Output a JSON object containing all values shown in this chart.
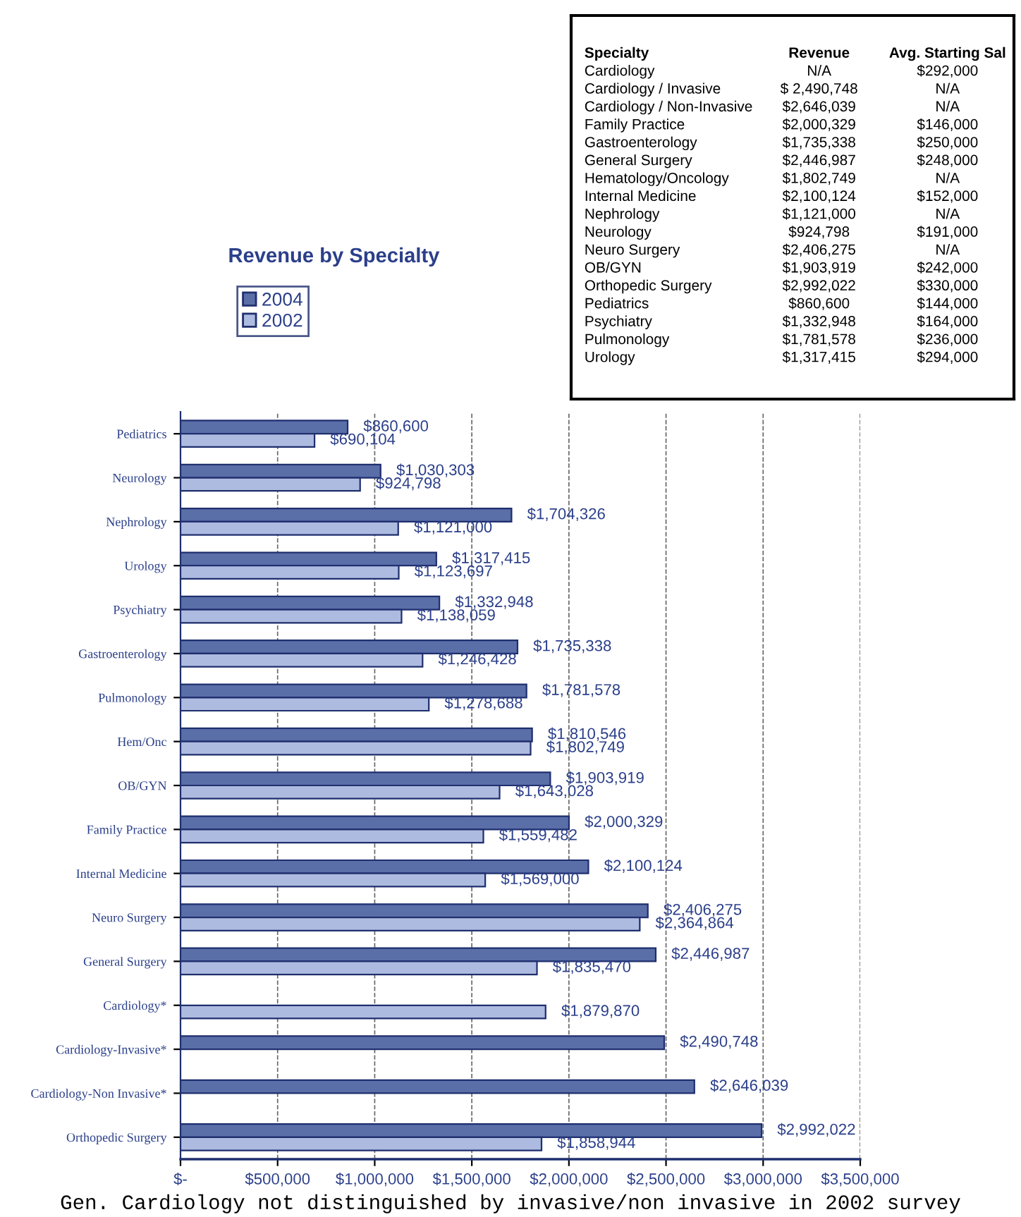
{
  "chart_data": [
    {
      "type": "bar",
      "orientation": "horizontal",
      "title": "Revenue by Specialty",
      "categories": [
        "Pediatrics",
        "Neurology",
        "Nephrology",
        "Urology",
        "Psychiatry",
        "Gastroenterology",
        "Pulmonology",
        "Hem/Onc",
        "OB/GYN",
        "Family Practice",
        "Internal Medicine",
        "Neuro Surgery",
        "General Surgery",
        "Cardiology*",
        "Cardiology-Invasive*",
        "Cardiology-Non Invasive*",
        "Orthopedic Surgery"
      ],
      "series": [
        {
          "name": "2004",
          "color": "#5a6ea8",
          "values": [
            860600,
            1030303,
            1704326,
            1317415,
            1332948,
            1735338,
            1781578,
            1810546,
            1903919,
            2000329,
            2100124,
            2406275,
            2446987,
            null,
            2490748,
            2646039,
            2992022
          ],
          "value_labels": [
            "$860,600",
            "$1,030,303",
            "$1,704,326",
            "$1,317,415",
            "$1,332,948",
            "$1,735,338",
            "$1,781,578",
            "$1,810,546",
            "$1,903,919",
            "$2,000,329",
            "$2,100,124",
            "$2,406,275",
            "$2,446,987",
            null,
            "$2,490,748",
            "$2,646,039",
            "$2,992,022"
          ]
        },
        {
          "name": "2002",
          "color": "#aebbe0",
          "values": [
            690104,
            924798,
            1121000,
            1123697,
            1138059,
            1246428,
            1278688,
            1802749,
            1643028,
            1559482,
            1569000,
            2364864,
            1835470,
            1879870,
            null,
            null,
            1858944
          ],
          "value_labels": [
            "$690,104",
            "$924,798",
            "$1,121,000",
            "$1,123,697",
            "$1,138,059",
            "$1,246,428",
            "$1,278,688",
            "$1,802,749",
            "$1,643,028",
            "$1,559,482",
            "$1,569,000",
            "$2,364,864",
            "$1,835,470",
            "$1,879,870",
            null,
            null,
            "$1,858,944"
          ]
        }
      ],
      "xlim": [
        0,
        3500000
      ],
      "xticks": [
        {
          "value": 0,
          "label": "$-"
        },
        {
          "value": 500000,
          "label": "$500,000"
        },
        {
          "value": 1000000,
          "label": "$1,000,000"
        },
        {
          "value": 1500000,
          "label": "$1,500,000"
        },
        {
          "value": 2000000,
          "label": "$2,000,000"
        },
        {
          "value": 2500000,
          "label": "$2,500,000"
        },
        {
          "value": 3000000,
          "label": "$3,000,000"
        },
        {
          "value": 3500000,
          "label": "$3,500,000"
        }
      ],
      "grid": "x",
      "legend": "top left",
      "annotations": [
        "Gen. Cardiology not distinguished by invasive/non invasive in 2002 survey"
      ]
    },
    {
      "type": "other",
      "annotations": [
        "Specialty",
        "Revenue",
        "Avg. Starting Sal",
        "Cardiology",
        "N/A",
        "$292,000",
        "Cardiology / Invasive",
        "$ 2,490,748",
        "N/A",
        "Cardiology / Non-Invasive",
        "$2,646,039",
        "N/A",
        "Family Practice",
        "$2,000,329",
        "$146,000",
        "Gastroenterology",
        "$1,735,338",
        "$250,000",
        "General Surgery",
        "$2,446,987",
        "$248,000",
        "Hematology/Oncology",
        "$1,802,749",
        "N/A",
        "Internal Medicine",
        "$2,100,124",
        "$152,000",
        "Nephrology",
        "$1,121,000",
        "N/A",
        "Neurology",
        "$924,798",
        "$191,000",
        "Neuro Surgery",
        "$2,406,275",
        "N/A",
        "OB/GYN",
        "$1,903,919",
        "$242,000",
        "Orthopedic Surgery",
        "$2,992,022",
        "$330,000",
        "Pediatrics",
        "$860,600",
        "$144,000",
        "Psychiatry",
        "$1,332,948",
        "$164,000",
        "Pulmonology",
        "$1,781,578",
        "$236,000",
        "Urology",
        "$1,317,415",
        "$294,000"
      ]
    }
  ]
}
